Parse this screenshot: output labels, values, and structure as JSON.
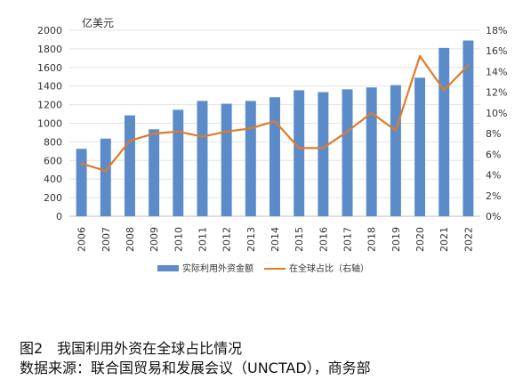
{
  "chart_data": {
    "type": "bar+line",
    "unit_left": "亿美元",
    "categories": [
      "2006",
      "2007",
      "2008",
      "2009",
      "2010",
      "2011",
      "2012",
      "2013",
      "2014",
      "2015",
      "2016",
      "2017",
      "2018",
      "2019",
      "2020",
      "2021",
      "2022"
    ],
    "series": [
      {
        "name": "实际利用外资金额",
        "type": "bar",
        "axis": "left",
        "color": "#5b8cc9",
        "values": [
          725,
          835,
          1085,
          935,
          1145,
          1240,
          1210,
          1240,
          1280,
          1355,
          1335,
          1365,
          1385,
          1410,
          1490,
          1810,
          1890
        ]
      },
      {
        "name": "在全球占比（右轴）",
        "type": "line",
        "axis": "right",
        "color": "#e07b28",
        "values": [
          5.1,
          4.4,
          7.3,
          8.0,
          8.2,
          7.7,
          8.2,
          8.5,
          9.2,
          6.6,
          6.6,
          8.2,
          10.0,
          8.3,
          15.5,
          12.2,
          14.6
        ]
      }
    ],
    "ylim_left": [
      0,
      2000
    ],
    "yticks_left": [
      "0",
      "200",
      "400",
      "600",
      "800",
      "1000",
      "1200",
      "1400",
      "1600",
      "1800",
      "2000"
    ],
    "ylim_right": [
      0,
      18
    ],
    "yticks_right": [
      "0%",
      "2%",
      "4%",
      "6%",
      "8%",
      "10%",
      "12%",
      "14%",
      "16%",
      "18%"
    ],
    "grid": true,
    "legend_position": "bottom"
  },
  "caption": {
    "title": "图2　我国利用外资在全球占比情况",
    "source": "数据来源：联合国贸易和发展会议（UNCTAD），商务部"
  }
}
